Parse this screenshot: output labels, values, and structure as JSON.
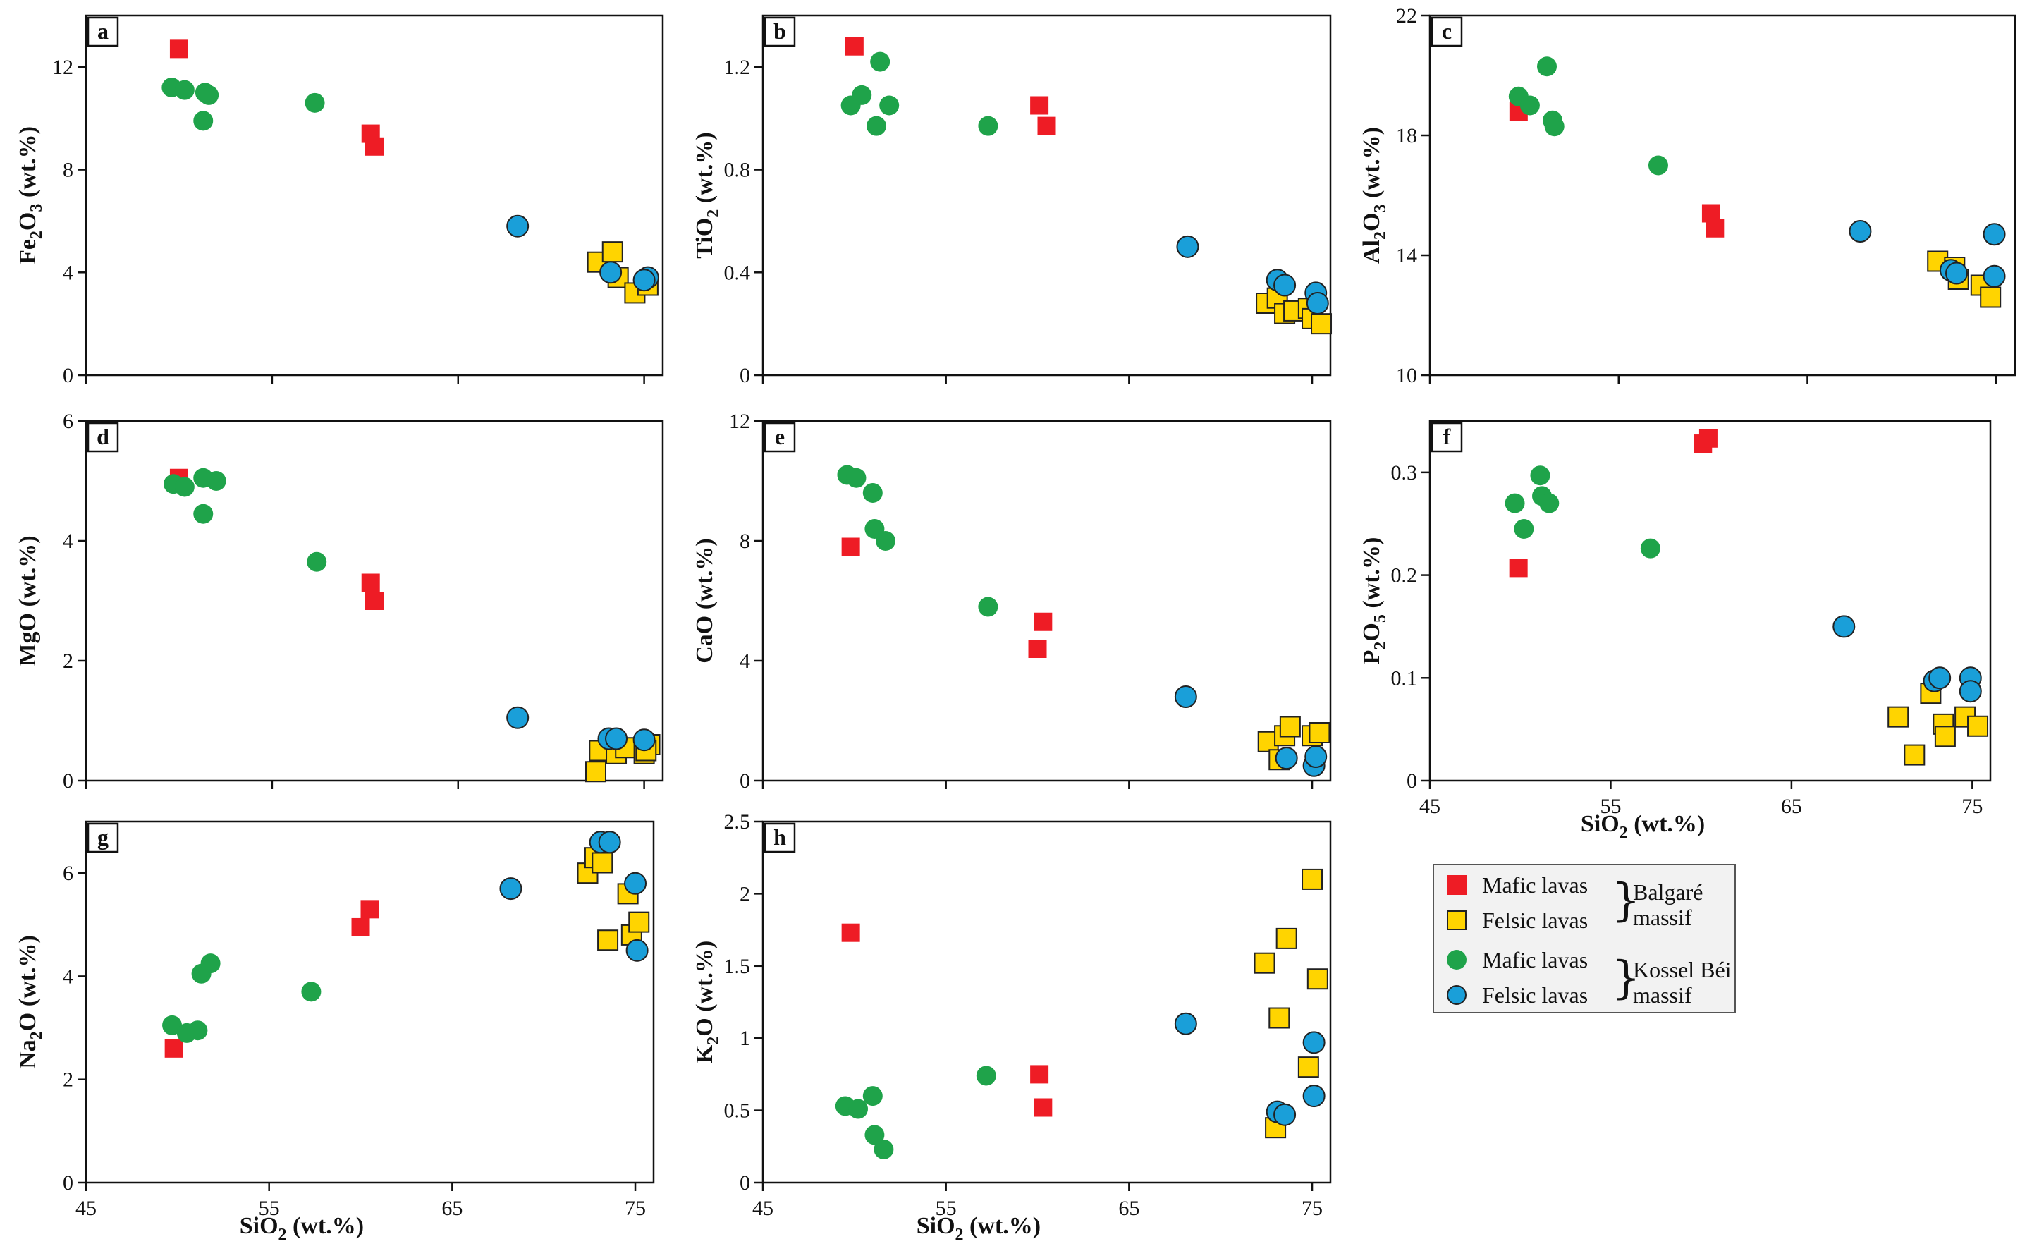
{
  "x_axis_label": "SiO₂ (wt.%)",
  "colors": {
    "mafic_balgare": "#ee1c25",
    "felsic_balgare": "#ffd400",
    "mafic_kossel": "#1fa34a",
    "felsic_kossel": "#1a9fd9"
  },
  "legend": {
    "mafic_lavas": "Mafic lavas",
    "felsic_lavas": "Felsic lavas",
    "balgare_massif": [
      "Balgaré",
      "massif"
    ],
    "kossel_massif": [
      "Kossel Béi",
      "massif"
    ]
  },
  "chart_data": [
    {
      "type": "scatter",
      "panel": "a",
      "ylabel": "Fe₂O₃ (wt.%)",
      "xlim": [
        45,
        76
      ],
      "ylim": [
        0,
        14
      ],
      "yticks": [
        0,
        4,
        8,
        12
      ],
      "ytick_labels": [
        "0",
        "4",
        "8",
        "12"
      ],
      "xticks": [
        45,
        55,
        65,
        75
      ],
      "xtick_labels": [],
      "xlabel": "",
      "series": [
        {
          "name": "Mafic lavas (Balgaré massif)",
          "marker": "red-square",
          "points": [
            [
              50,
              12.7
            ],
            [
              60.3,
              9.4
            ],
            [
              60.5,
              8.9
            ]
          ]
        },
        {
          "name": "Felsic lavas (Balgaré massif)",
          "marker": "yellow-square",
          "points": [
            [
              72.5,
              4.4
            ],
            [
              73.3,
              4.8
            ],
            [
              73.6,
              3.8
            ],
            [
              74.5,
              3.2
            ],
            [
              75.2,
              3.5
            ]
          ]
        },
        {
          "name": "Mafic lavas (Kossel Béi massif)",
          "marker": "green-circle",
          "points": [
            [
              49.6,
              11.2
            ],
            [
              50.3,
              11.1
            ],
            [
              51.3,
              9.9
            ],
            [
              51.4,
              11.0
            ],
            [
              51.6,
              10.9
            ],
            [
              57.3,
              10.6
            ]
          ]
        },
        {
          "name": "Felsic lavas (Kossel Béi massif)",
          "marker": "blue-circle",
          "points": [
            [
              68.2,
              5.8
            ],
            [
              73.2,
              4.0
            ],
            [
              75.2,
              3.8
            ],
            [
              75.0,
              3.7
            ]
          ]
        }
      ]
    },
    {
      "type": "scatter",
      "panel": "b",
      "ylabel": "TiO₂ (wt.%)",
      "xlim": [
        45,
        76
      ],
      "ylim": [
        0,
        1.4
      ],
      "yticks": [
        0,
        0.4,
        0.8,
        1.2
      ],
      "ytick_labels": [
        "0",
        "0.4",
        "0.8",
        "1.2"
      ],
      "xticks": [
        45,
        55,
        65,
        75
      ],
      "xtick_labels": [],
      "xlabel": "",
      "series": [
        {
          "name": "Mafic lavas (Balgaré massif)",
          "marker": "red-square",
          "points": [
            [
              50,
              1.28
            ],
            [
              60.1,
              1.05
            ],
            [
              60.5,
              0.97
            ]
          ]
        },
        {
          "name": "Felsic lavas (Balgaré massif)",
          "marker": "yellow-square",
          "points": [
            [
              72.5,
              0.28
            ],
            [
              73.1,
              0.3
            ],
            [
              73.5,
              0.24
            ],
            [
              74.0,
              0.25
            ],
            [
              74.8,
              0.26
            ],
            [
              75.0,
              0.22
            ],
            [
              75.5,
              0.2
            ]
          ]
        },
        {
          "name": "Mafic lavas (Kossel Béi massif)",
          "marker": "green-circle",
          "points": [
            [
              49.8,
              1.05
            ],
            [
              50.4,
              1.09
            ],
            [
              51.2,
              0.97
            ],
            [
              51.4,
              1.22
            ],
            [
              51.9,
              1.05
            ],
            [
              57.3,
              0.97
            ]
          ]
        },
        {
          "name": "Felsic lavas (Kossel Béi massif)",
          "marker": "blue-circle",
          "points": [
            [
              68.2,
              0.5
            ],
            [
              73.1,
              0.37
            ],
            [
              73.5,
              0.35
            ],
            [
              75.2,
              0.32
            ],
            [
              75.3,
              0.28
            ]
          ]
        }
      ]
    },
    {
      "type": "scatter",
      "panel": "c",
      "ylabel": "Al₂O₃ (wt.%)",
      "xlim": [
        45,
        76
      ],
      "ylim": [
        10,
        22
      ],
      "yticks": [
        10,
        14,
        18,
        22
      ],
      "ytick_labels": [
        "10",
        "14",
        "18",
        "22"
      ],
      "xticks": [
        45,
        55,
        65,
        75
      ],
      "xtick_labels": [],
      "xlabel": "",
      "series": [
        {
          "name": "Mafic lavas (Balgaré massif)",
          "marker": "red-square",
          "points": [
            [
              49.7,
              18.8
            ],
            [
              59.9,
              15.4
            ],
            [
              60.1,
              14.9
            ]
          ]
        },
        {
          "name": "Felsic lavas (Balgaré massif)",
          "marker": "yellow-square",
          "points": [
            [
              71.9,
              13.8
            ],
            [
              72.8,
              13.6
            ],
            [
              73.0,
              13.2
            ],
            [
              74.2,
              13.0
            ],
            [
              74.7,
              12.6
            ]
          ]
        },
        {
          "name": "Mafic lavas (Kossel Béi massif)",
          "marker": "green-circle",
          "points": [
            [
              49.7,
              19.3
            ],
            [
              50.3,
              19.0
            ],
            [
              51.2,
              20.3
            ],
            [
              51.5,
              18.5
            ],
            [
              51.6,
              18.3
            ],
            [
              57.1,
              17.0
            ]
          ]
        },
        {
          "name": "Felsic lavas (Kossel Béi massif)",
          "marker": "blue-circle",
          "points": [
            [
              67.8,
              14.8
            ],
            [
              72.6,
              13.5
            ],
            [
              72.9,
              13.4
            ],
            [
              74.9,
              14.7
            ],
            [
              74.9,
              13.3
            ]
          ]
        }
      ]
    },
    {
      "type": "scatter",
      "panel": "d",
      "ylabel": "MgO (wt.%)",
      "xlim": [
        45,
        76
      ],
      "ylim": [
        0,
        6
      ],
      "yticks": [
        0,
        2,
        4,
        6
      ],
      "ytick_labels": [
        "0",
        "2",
        "4",
        "6"
      ],
      "xticks": [
        45,
        55,
        65,
        75
      ],
      "xtick_labels": [],
      "xlabel": "",
      "series": [
        {
          "name": "Mafic lavas (Balgaré massif)",
          "marker": "red-square",
          "points": [
            [
              50,
              5.05
            ],
            [
              60.3,
              3.3
            ],
            [
              60.5,
              3.0
            ]
          ]
        },
        {
          "name": "Felsic lavas (Balgaré massif)",
          "marker": "yellow-square",
          "points": [
            [
              72.4,
              0.15
            ],
            [
              72.6,
              0.5
            ],
            [
              73.5,
              0.45
            ],
            [
              74.0,
              0.55
            ],
            [
              75.0,
              0.45
            ],
            [
              75.3,
              0.6
            ],
            [
              75.1,
              0.5
            ]
          ]
        },
        {
          "name": "Mafic lavas (Kossel Béi massif)",
          "marker": "green-circle",
          "points": [
            [
              49.7,
              4.95
            ],
            [
              50.3,
              4.9
            ],
            [
              51.3,
              5.05
            ],
            [
              51.3,
              4.45
            ],
            [
              52.0,
              5.0
            ],
            [
              57.4,
              3.65
            ]
          ]
        },
        {
          "name": "Felsic lavas (Kossel Béi massif)",
          "marker": "blue-circle",
          "points": [
            [
              68.2,
              1.05
            ],
            [
              73.1,
              0.7
            ],
            [
              73.5,
              0.7
            ],
            [
              75.0,
              0.68
            ]
          ]
        }
      ]
    },
    {
      "type": "scatter",
      "panel": "e",
      "ylabel": "CaO (wt.%)",
      "xlim": [
        45,
        76
      ],
      "ylim": [
        0,
        12
      ],
      "yticks": [
        0,
        4,
        8,
        12
      ],
      "ytick_labels": [
        "0",
        "4",
        "8",
        "12"
      ],
      "xticks": [
        45,
        55,
        65,
        75
      ],
      "xtick_labels": [],
      "xlabel": "",
      "series": [
        {
          "name": "Mafic lavas (Balgaré massif)",
          "marker": "red-square",
          "points": [
            [
              49.8,
              7.8
            ],
            [
              60.0,
              4.4
            ],
            [
              60.3,
              5.3
            ]
          ]
        },
        {
          "name": "Felsic lavas (Balgaré massif)",
          "marker": "yellow-square",
          "points": [
            [
              72.6,
              1.3
            ],
            [
              73.2,
              0.7
            ],
            [
              73.5,
              1.5
            ],
            [
              73.8,
              1.8
            ],
            [
              75.0,
              1.5
            ],
            [
              75.4,
              1.6
            ]
          ]
        },
        {
          "name": "Mafic lavas (Kossel Béi massif)",
          "marker": "green-circle",
          "points": [
            [
              49.6,
              10.2
            ],
            [
              50.1,
              10.1
            ],
            [
              51.0,
              9.6
            ],
            [
              51.1,
              8.4
            ],
            [
              51.7,
              8.0
            ],
            [
              57.3,
              5.8
            ]
          ]
        },
        {
          "name": "Felsic lavas (Kossel Béi massif)",
          "marker": "blue-circle",
          "points": [
            [
              68.1,
              2.8
            ],
            [
              73.6,
              0.75
            ],
            [
              75.1,
              0.5
            ],
            [
              75.2,
              0.8
            ]
          ]
        }
      ]
    },
    {
      "type": "scatter",
      "panel": "f",
      "ylabel": "P₂O₅ (wt.%)",
      "xlim": [
        45,
        76
      ],
      "ylim": [
        0,
        0.35
      ],
      "yticks": [
        0,
        0.1,
        0.2,
        0.3
      ],
      "ytick_labels": [
        "0",
        "0.1",
        "0.2",
        "0.3"
      ],
      "xticks": [
        45,
        55,
        65,
        75
      ],
      "xtick_labels": [
        "45",
        "55",
        "65",
        "75"
      ],
      "xlabel": "SiO₂ (wt.%)",
      "series": [
        {
          "name": "Mafic lavas (Balgaré massif)",
          "marker": "red-square",
          "points": [
            [
              49.9,
              0.207
            ],
            [
              60.1,
              0.328
            ],
            [
              60.4,
              0.333
            ]
          ]
        },
        {
          "name": "Felsic lavas (Balgaré massif)",
          "marker": "yellow-square",
          "points": [
            [
              70.9,
              0.062
            ],
            [
              71.8,
              0.025
            ],
            [
              72.7,
              0.085
            ],
            [
              73.4,
              0.055
            ],
            [
              73.5,
              0.043
            ],
            [
              74.6,
              0.062
            ],
            [
              75.3,
              0.053
            ]
          ]
        },
        {
          "name": "Mafic lavas (Kossel Béi massif)",
          "marker": "green-circle",
          "points": [
            [
              49.7,
              0.27
            ],
            [
              50.2,
              0.245
            ],
            [
              51.1,
              0.297
            ],
            [
              51.2,
              0.277
            ],
            [
              51.6,
              0.27
            ],
            [
              57.2,
              0.226
            ]
          ]
        },
        {
          "name": "Felsic lavas (Kossel Béi massif)",
          "marker": "blue-circle",
          "points": [
            [
              67.9,
              0.15
            ],
            [
              72.9,
              0.097
            ],
            [
              73.2,
              0.1
            ],
            [
              74.9,
              0.1
            ],
            [
              74.9,
              0.087
            ]
          ]
        }
      ]
    },
    {
      "type": "scatter",
      "panel": "g",
      "ylabel": "Na₂O (wt.%)",
      "xlim": [
        45,
        76
      ],
      "ylim": [
        0,
        7
      ],
      "yticks": [
        0,
        2,
        4,
        6
      ],
      "ytick_labels": [
        "0",
        "2",
        "4",
        "6"
      ],
      "xticks": [
        45,
        55,
        65,
        75
      ],
      "xtick_labels": [
        "45",
        "55",
        "65",
        "75"
      ],
      "xlabel": "SiO₂ (wt.%)",
      "series": [
        {
          "name": "Mafic lavas (Balgaré massif)",
          "marker": "red-square",
          "points": [
            [
              49.8,
              2.6
            ],
            [
              60.0,
              4.95
            ],
            [
              60.5,
              5.3
            ]
          ]
        },
        {
          "name": "Felsic lavas (Balgaré massif)",
          "marker": "yellow-square",
          "points": [
            [
              72.4,
              6.0
            ],
            [
              72.8,
              6.3
            ],
            [
              73.2,
              6.2
            ],
            [
              73.5,
              4.7
            ],
            [
              74.6,
              5.6
            ],
            [
              74.8,
              4.8
            ],
            [
              75.2,
              5.05
            ]
          ]
        },
        {
          "name": "Mafic lavas (Kossel Béi massif)",
          "marker": "green-circle",
          "points": [
            [
              49.7,
              3.05
            ],
            [
              50.5,
              2.9
            ],
            [
              51.1,
              2.95
            ],
            [
              51.3,
              4.05
            ],
            [
              51.8,
              4.25
            ],
            [
              57.3,
              3.7
            ]
          ]
        },
        {
          "name": "Felsic lavas (Kossel Béi massif)",
          "marker": "blue-circle",
          "points": [
            [
              68.2,
              5.7
            ],
            [
              73.1,
              6.6
            ],
            [
              73.6,
              6.6
            ],
            [
              75.0,
              5.8
            ],
            [
              75.1,
              4.5
            ]
          ]
        }
      ]
    },
    {
      "type": "scatter",
      "panel": "h",
      "ylabel": "K₂O (wt.%)",
      "xlim": [
        45,
        76
      ],
      "ylim": [
        0,
        2.5
      ],
      "yticks": [
        0,
        0.5,
        1,
        1.5,
        2,
        2.5
      ],
      "ytick_labels": [
        "0",
        "0.5",
        "1",
        "1.5",
        "2",
        "2.5"
      ],
      "xticks": [
        45,
        55,
        65,
        75
      ],
      "xtick_labels": [
        "45",
        "55",
        "65",
        "75"
      ],
      "xlabel": "SiO₂ (wt.%)",
      "series": [
        {
          "name": "Mafic lavas (Balgaré massif)",
          "marker": "red-square",
          "points": [
            [
              49.8,
              1.73
            ],
            [
              60.1,
              0.75
            ],
            [
              60.3,
              0.52
            ]
          ]
        },
        {
          "name": "Felsic lavas (Balgaré massif)",
          "marker": "yellow-square",
          "points": [
            [
              72.4,
              1.52
            ],
            [
              73.0,
              0.38
            ],
            [
              73.2,
              1.14
            ],
            [
              73.6,
              1.69
            ],
            [
              74.8,
              0.8
            ],
            [
              75.0,
              2.1
            ],
            [
              75.3,
              1.41
            ]
          ]
        },
        {
          "name": "Mafic lavas (Kossel Béi massif)",
          "marker": "green-circle",
          "points": [
            [
              49.5,
              0.53
            ],
            [
              50.2,
              0.51
            ],
            [
              51.0,
              0.6
            ],
            [
              51.1,
              0.33
            ],
            [
              51.6,
              0.23
            ],
            [
              57.2,
              0.74
            ]
          ]
        },
        {
          "name": "Felsic lavas (Kossel Béi massif)",
          "marker": "blue-circle",
          "points": [
            [
              68.1,
              1.1
            ],
            [
              73.1,
              0.49
            ],
            [
              73.5,
              0.47
            ],
            [
              75.1,
              0.97
            ],
            [
              75.1,
              0.6
            ]
          ]
        }
      ]
    }
  ]
}
